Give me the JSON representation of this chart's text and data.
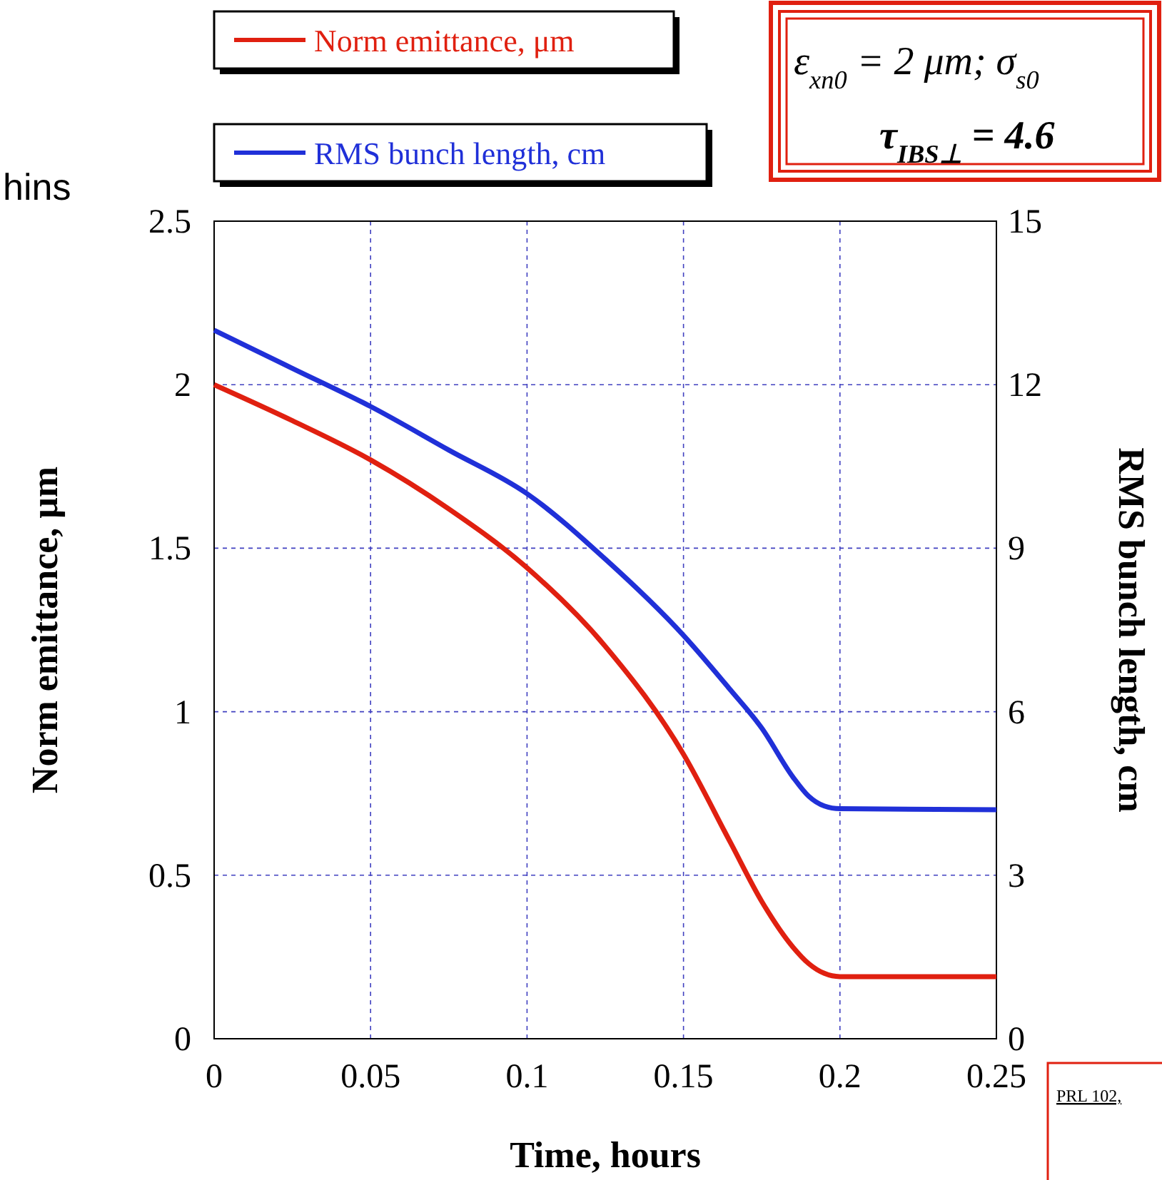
{
  "chart_data": {
    "type": "line",
    "xlabel": "Time, hours",
    "ylabel": "Norm emittance, μm",
    "y2label": "RMS bunch length, cm",
    "x": [
      0,
      0.025,
      0.05,
      0.075,
      0.1,
      0.125,
      0.15,
      0.165,
      0.175,
      0.185,
      0.19,
      0.195,
      0.2,
      0.25
    ],
    "series": [
      {
        "name": "Norm emittance, μm",
        "color": "#e02010",
        "values": [
          2.0,
          1.89,
          1.77,
          1.62,
          1.44,
          1.2,
          0.87,
          0.6,
          0.42,
          0.28,
          0.23,
          0.2,
          0.19,
          0.19
        ]
      },
      {
        "name": "RMS bunch length, cm",
        "color": "#2030d8",
        "axis": "y2",
        "values": [
          13.0,
          12.3,
          11.6,
          10.8,
          10.0,
          8.8,
          7.4,
          6.4,
          5.7,
          4.8,
          4.45,
          4.27,
          4.22,
          4.2
        ]
      }
    ],
    "xlim": [
      0,
      0.25
    ],
    "xticks": [
      0,
      0.05,
      0.1,
      0.15,
      0.2,
      0.25
    ],
    "ylim": [
      0,
      2.5
    ],
    "yticks": [
      0,
      0.5,
      1,
      1.5,
      2,
      2.5
    ],
    "y2lim": [
      0,
      15
    ],
    "y2ticks": [
      0,
      3,
      6,
      9,
      12,
      15
    ],
    "grid": true,
    "legend": "top left",
    "marker": "none",
    "line_style": "solid",
    "annotations": [
      "ε$_{xn0}$ = 2 μm; σ$_{s0}$",
      "τ$_{IBS⊥}$ = 4.6",
      "hins",
      "PRL 102,"
    ]
  }
}
